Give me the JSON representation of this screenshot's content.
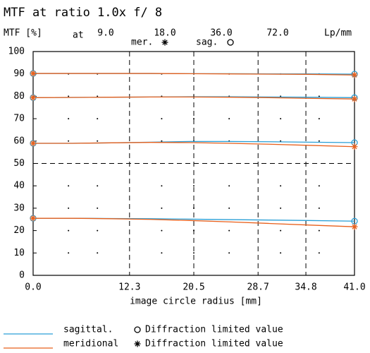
{
  "chart_data": {
    "type": "line",
    "title": "MTF at ratio 1.0x   f/ 8",
    "y_label": "MTF [%]",
    "frequency_prefix": "at",
    "frequencies": [
      {
        "value": 9,
        "label": "9.0"
      },
      {
        "value": 18,
        "label": "18.0"
      },
      {
        "value": 36,
        "label": "36.0"
      },
      {
        "value": 72,
        "label": "72.0"
      }
    ],
    "frequency_unit": "Lp/mm",
    "x_label": "image circle radius [mm]",
    "x": [
      0,
      5,
      10,
      15,
      20,
      25,
      30,
      35,
      41
    ],
    "series": [
      {
        "name": "sagittal.",
        "short_name": "sag.",
        "marker": "circle",
        "color": "#2a9fd6",
        "values": [
          [
            90.2,
            90.2,
            90.2,
            90.2,
            90.1,
            90.1,
            90.0,
            90.0,
            89.9
          ],
          [
            79.4,
            79.5,
            79.6,
            79.7,
            79.8,
            79.8,
            79.7,
            79.6,
            79.4
          ],
          [
            59.0,
            59.0,
            59.2,
            59.5,
            59.8,
            59.8,
            59.7,
            59.5,
            59.3
          ],
          [
            25.5,
            25.5,
            25.4,
            25.3,
            25.1,
            24.9,
            24.7,
            24.5,
            24.2
          ]
        ]
      },
      {
        "name": "meridional",
        "short_name": "mer.",
        "marker": "asterisk",
        "color": "#e8601c",
        "values": [
          [
            90.2,
            90.2,
            90.2,
            90.2,
            90.1,
            90.0,
            89.9,
            89.8,
            89.5
          ],
          [
            79.4,
            79.5,
            79.6,
            79.7,
            79.7,
            79.6,
            79.4,
            79.1,
            78.8
          ],
          [
            59.0,
            59.0,
            59.2,
            59.4,
            59.3,
            59.0,
            58.6,
            58.1,
            57.5
          ],
          [
            25.5,
            25.5,
            25.3,
            25.0,
            24.5,
            23.9,
            23.2,
            22.5,
            21.7
          ]
        ]
      }
    ],
    "marker_text": "Diffraction limited value",
    "xlim": [
      0,
      41
    ],
    "xticks": [
      {
        "value": 0,
        "label": "0.0"
      },
      12.3,
      20.5,
      28.7,
      34.8,
      {
        "value": 41,
        "label": "41.0"
      }
    ],
    "ylim": [
      0,
      100
    ],
    "yticks": [
      0,
      10,
      20,
      30,
      40,
      50,
      60,
      70,
      80,
      90,
      100
    ],
    "reference_y": 50,
    "grid": true
  }
}
